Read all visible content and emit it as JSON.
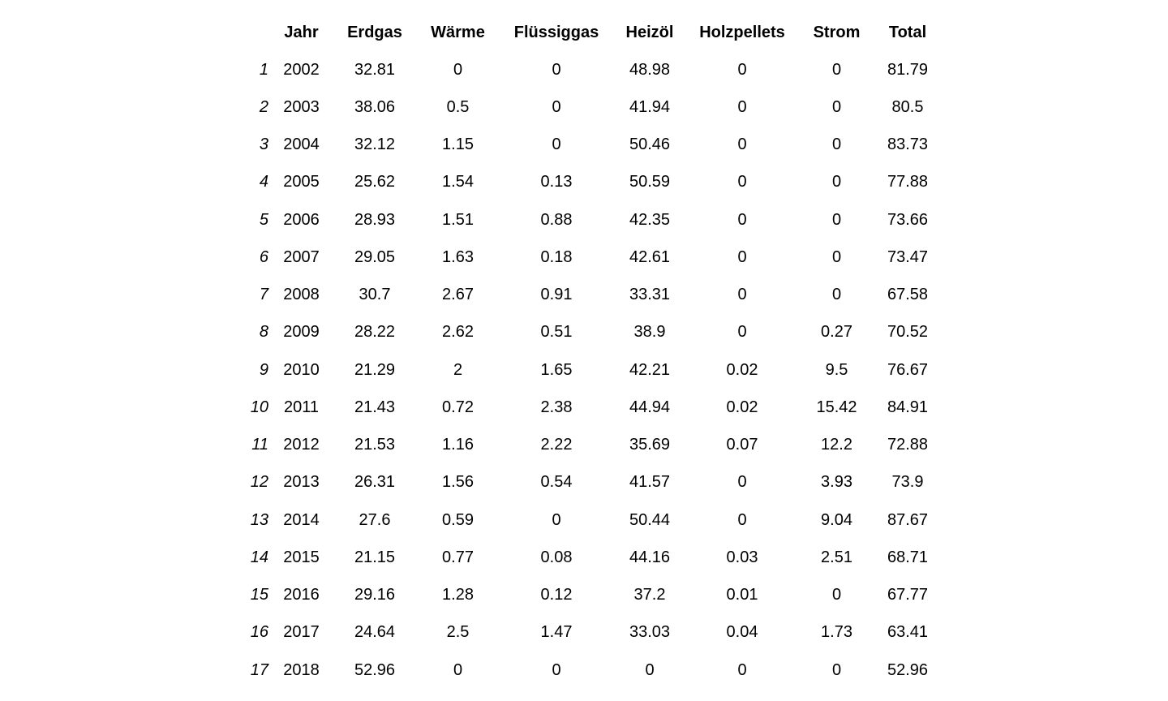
{
  "table": {
    "headers": [
      "",
      "Jahr",
      "Erdgas",
      "Wärme",
      "Flüssiggas",
      "Heizöl",
      "Holzpellets",
      "Strom",
      "Total"
    ],
    "rows": [
      [
        "1",
        "2002",
        "32.81",
        "0",
        "0",
        "48.98",
        "0",
        "0",
        "81.79"
      ],
      [
        "2",
        "2003",
        "38.06",
        "0.5",
        "0",
        "41.94",
        "0",
        "0",
        "80.5"
      ],
      [
        "3",
        "2004",
        "32.12",
        "1.15",
        "0",
        "50.46",
        "0",
        "0",
        "83.73"
      ],
      [
        "4",
        "2005",
        "25.62",
        "1.54",
        "0.13",
        "50.59",
        "0",
        "0",
        "77.88"
      ],
      [
        "5",
        "2006",
        "28.93",
        "1.51",
        "0.88",
        "42.35",
        "0",
        "0",
        "73.66"
      ],
      [
        "6",
        "2007",
        "29.05",
        "1.63",
        "0.18",
        "42.61",
        "0",
        "0",
        "73.47"
      ],
      [
        "7",
        "2008",
        "30.7",
        "2.67",
        "0.91",
        "33.31",
        "0",
        "0",
        "67.58"
      ],
      [
        "8",
        "2009",
        "28.22",
        "2.62",
        "0.51",
        "38.9",
        "0",
        "0.27",
        "70.52"
      ],
      [
        "9",
        "2010",
        "21.29",
        "2",
        "1.65",
        "42.21",
        "0.02",
        "9.5",
        "76.67"
      ],
      [
        "10",
        "2011",
        "21.43",
        "0.72",
        "2.38",
        "44.94",
        "0.02",
        "15.42",
        "84.91"
      ],
      [
        "11",
        "2012",
        "21.53",
        "1.16",
        "2.22",
        "35.69",
        "0.07",
        "12.2",
        "72.88"
      ],
      [
        "12",
        "2013",
        "26.31",
        "1.56",
        "0.54",
        "41.57",
        "0",
        "3.93",
        "73.9"
      ],
      [
        "13",
        "2014",
        "27.6",
        "0.59",
        "0",
        "50.44",
        "0",
        "9.04",
        "87.67"
      ],
      [
        "14",
        "2015",
        "21.15",
        "0.77",
        "0.08",
        "44.16",
        "0.03",
        "2.51",
        "68.71"
      ],
      [
        "15",
        "2016",
        "29.16",
        "1.28",
        "0.12",
        "37.2",
        "0.01",
        "0",
        "67.77"
      ],
      [
        "16",
        "2017",
        "24.64",
        "2.5",
        "1.47",
        "33.03",
        "0.04",
        "1.73",
        "63.41"
      ],
      [
        "17",
        "2018",
        "52.96",
        "0",
        "0",
        "0",
        "0",
        "0",
        "52.96"
      ]
    ]
  }
}
